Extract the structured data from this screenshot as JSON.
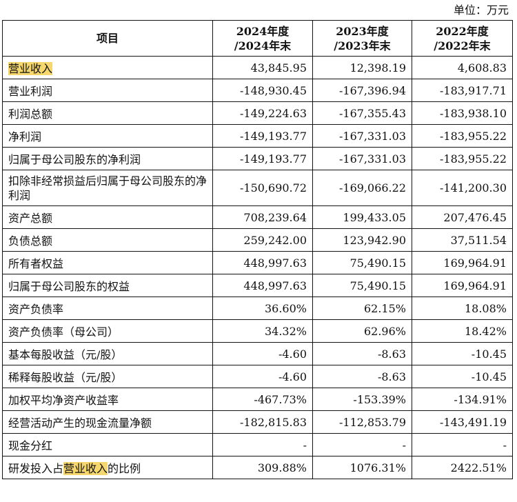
{
  "unit_label": "单位：万元",
  "header": {
    "item": "项目",
    "col_2024": [
      "2024年度",
      "/2024年末"
    ],
    "col_2023": [
      "2023年度",
      "/2023年末"
    ],
    "col_2022": [
      "2022年度",
      "/2022年末"
    ]
  },
  "highlight_color": "#f5d76e",
  "rows": [
    {
      "label": "营业收入",
      "v2024": "43,845.95",
      "v2023": "12,398.19",
      "v2022": "4,608.83"
    },
    {
      "label": "营业利润",
      "v2024": "-148,930.45",
      "v2023": "-167,396.94",
      "v2022": "-183,917.71"
    },
    {
      "label": "利润总额",
      "v2024": "-149,224.63",
      "v2023": "-167,355.43",
      "v2022": "-183,938.10"
    },
    {
      "label": "净利润",
      "v2024": "-149,193.77",
      "v2023": "-167,331.03",
      "v2022": "-183,955.22"
    },
    {
      "label": "归属于母公司股东的净利润",
      "v2024": "-149,193.77",
      "v2023": "-167,331.03",
      "v2022": "-183,955.22"
    },
    {
      "label": "扣除非经常损益后归属于母公司股东的净利润",
      "v2024": "-150,690.72",
      "v2023": "-169,066.22",
      "v2022": "-141,200.30"
    },
    {
      "label": "资产总额",
      "v2024": "708,239.64",
      "v2023": "199,433.05",
      "v2022": "207,476.45"
    },
    {
      "label": "负债总额",
      "v2024": "259,242.00",
      "v2023": "123,942.90",
      "v2022": "37,511.54"
    },
    {
      "label": "所有者权益",
      "v2024": "448,997.63",
      "v2023": "75,490.15",
      "v2022": "169,964.91"
    },
    {
      "label": "归属于母公司股东的权益",
      "v2024": "448,997.63",
      "v2023": "75,490.15",
      "v2022": "169,964.91"
    },
    {
      "label": "资产负债率",
      "v2024": "36.60%",
      "v2023": "62.15%",
      "v2022": "18.08%"
    },
    {
      "label": "资产负债率（母公司）",
      "v2024": "34.32%",
      "v2023": "62.96%",
      "v2022": "18.42%"
    },
    {
      "label": "基本每股收益（元/股）",
      "v2024": "-4.60",
      "v2023": "-8.63",
      "v2022": "-10.45"
    },
    {
      "label": "稀释每股收益（元/股）",
      "v2024": "-4.60",
      "v2023": "-8.63",
      "v2022": "-10.45"
    },
    {
      "label": "加权平均净资产收益率",
      "v2024": "-467.73%",
      "v2023": "-153.39%",
      "v2022": "-134.91%"
    },
    {
      "label": "经营活动产生的现金流量净额",
      "v2024": "-182,815.83",
      "v2023": "-112,853.79",
      "v2022": "-143,491.19"
    },
    {
      "label": "现金分红",
      "v2024": "-",
      "v2023": "-",
      "v2022": "-"
    },
    {
      "label_parts": [
        "研发投入占",
        "营业收入",
        "的比例"
      ],
      "v2024": "309.88%",
      "v2023": "1076.31%",
      "v2022": "2422.51%"
    }
  ]
}
